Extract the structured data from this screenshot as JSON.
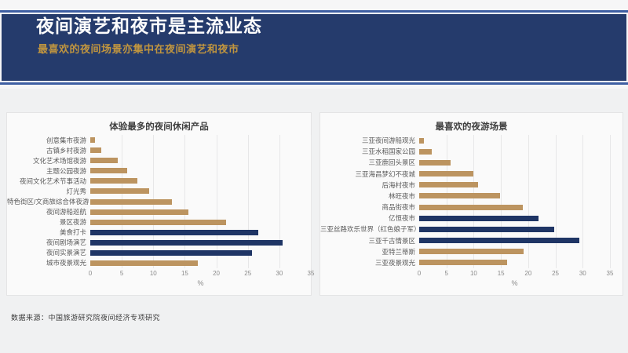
{
  "header": {
    "title": "夜间演艺和夜市是主流业态",
    "subtitle": "最喜欢的夜间场景亦集中在夜间演艺和夜市"
  },
  "source_note": "数据来源：中国旅游研究院夜间经济专项研究",
  "colors": {
    "header_bg": "#253b6c",
    "accent_line": "#3e5fa3",
    "title_text": "#fdfdfd",
    "subtitle_text": "#c0953f",
    "bar_default": "#bc9460",
    "bar_highlight": "#1f3565",
    "page_bg": "#f0f1f2",
    "panel_bg": "#fafafa"
  },
  "chart_data": [
    {
      "type": "bar",
      "orientation": "horizontal",
      "title": "体验最多的夜间休闲产品",
      "xlabel": "%",
      "xlim": [
        0,
        35
      ],
      "xticks": [
        0,
        5,
        10,
        15,
        20,
        25,
        30,
        35
      ],
      "grid": true,
      "legend": false,
      "categories": [
        "创意集市夜游",
        "古镇乡村夜游",
        "文化艺术场馆夜游",
        "主题公园夜游",
        "夜间文化艺术节事活动",
        "灯光秀",
        "特色街区/文商旅综合体夜游",
        "夜间游船巡航",
        "景区夜游",
        "美食打卡",
        "夜间剧场演艺",
        "夜间实景演艺",
        "城市夜景观光"
      ],
      "values": [
        0.8,
        1.7,
        4.4,
        5.9,
        7.5,
        9.3,
        13.0,
        15.6,
        21.5,
        26.6,
        30.5,
        25.7,
        17.1
      ],
      "highlighted_indices": [
        9,
        10,
        11
      ]
    },
    {
      "type": "bar",
      "orientation": "horizontal",
      "title": "最喜欢的夜游场景",
      "xlabel": "%",
      "xlim": [
        0,
        35
      ],
      "xticks": [
        0,
        5,
        10,
        15,
        20,
        25,
        30,
        35
      ],
      "grid": true,
      "legend": false,
      "categories": [
        "三亚夜间游船观光",
        "三亚水稻国家公园",
        "三亚鹿回头景区",
        "三亚海昌梦幻不夜城",
        "后海村夜市",
        "林旺夜市",
        "商品街夜市",
        "亿恒夜市",
        "三亚丝路欢乐世界（红色娘子军）",
        "三亚千古情景区",
        "亚特兰蒂斯",
        "三亚夜景观光"
      ],
      "values": [
        0.9,
        2.3,
        5.7,
        10.0,
        10.8,
        14.9,
        19.0,
        21.9,
        24.8,
        29.4,
        19.2,
        16.1
      ],
      "highlighted_indices": [
        7,
        8,
        9
      ]
    }
  ]
}
